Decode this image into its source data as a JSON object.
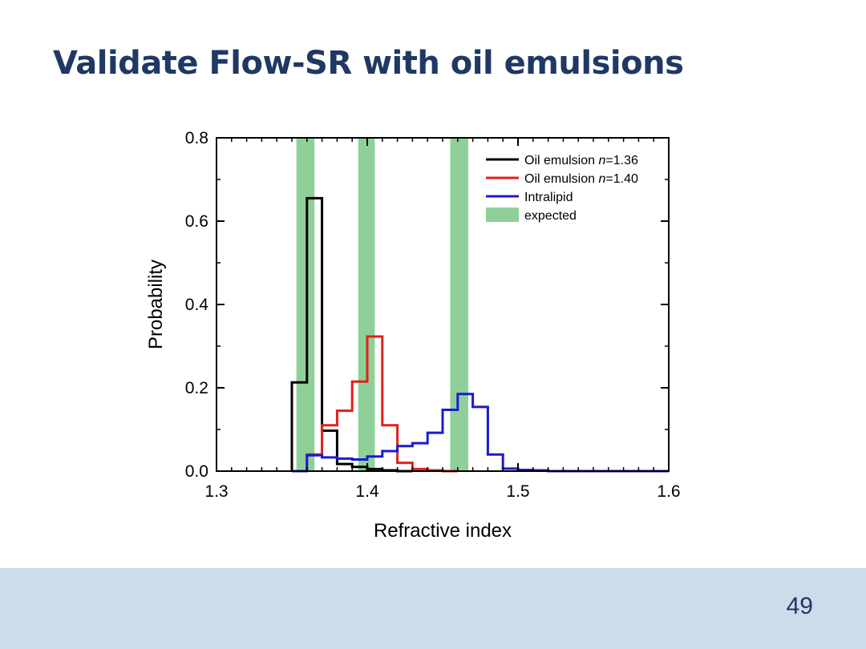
{
  "slide": {
    "title": "Validate Flow-SR with oil emulsions",
    "page_number": "49"
  },
  "colors": {
    "title": "#1f3864",
    "footer_band": "#cddceb",
    "expected_band": "#8fd099"
  },
  "chart_data": {
    "type": "line",
    "step": "histogram",
    "xlabel": "Refractive index",
    "ylabel": "Probability",
    "xlim": [
      1.3,
      1.6
    ],
    "ylim": [
      0.0,
      0.8
    ],
    "xticks": [
      "1.3",
      "1.4",
      "1.5",
      "1.6"
    ],
    "yticks": [
      "0.0",
      "0.2",
      "0.4",
      "0.6",
      "0.8"
    ],
    "bin_width": 0.01,
    "grid": false,
    "legend_position": "top-right",
    "legend": [
      {
        "label": "Oil emulsion n=1.36",
        "prefix": "Oil emulsion ",
        "italic": "n",
        "suffix": "=1.36",
        "color": "#000000",
        "kind": "line"
      },
      {
        "label": "Oil emulsion n=1.40",
        "prefix": "Oil emulsion ",
        "italic": "n",
        "suffix": "=1.40",
        "color": "#e0201b",
        "kind": "line"
      },
      {
        "label": "Intralipid",
        "prefix": "Intralipid",
        "italic": "",
        "suffix": "",
        "color": "#1a1ad2",
        "kind": "line"
      },
      {
        "label": "expected",
        "prefix": "expected",
        "italic": "",
        "suffix": "",
        "color": "#8fd099",
        "kind": "band"
      }
    ],
    "expected_bands": [
      [
        1.353,
        1.365
      ],
      [
        1.394,
        1.405
      ],
      [
        1.455,
        1.467
      ]
    ],
    "series": [
      {
        "name": "Oil emulsion n=1.36",
        "color": "#000000",
        "bin_edges": [
          1.35,
          1.36,
          1.37,
          1.38,
          1.39,
          1.4,
          1.41,
          1.42,
          1.43
        ],
        "values": [
          0.213,
          0.655,
          0.097,
          0.017,
          0.01,
          0.005,
          0.002,
          0.0
        ]
      },
      {
        "name": "Oil emulsion n=1.40",
        "color": "#e0201b",
        "bin_edges": [
          1.35,
          1.36,
          1.37,
          1.38,
          1.39,
          1.4,
          1.41,
          1.42,
          1.43,
          1.44,
          1.45,
          1.46
        ],
        "values": [
          0.0,
          0.04,
          0.11,
          0.145,
          0.215,
          0.323,
          0.11,
          0.02,
          0.005,
          0.002,
          0.0
        ]
      },
      {
        "name": "Intralipid",
        "color": "#1a1ad2",
        "bin_edges": [
          1.35,
          1.36,
          1.37,
          1.38,
          1.39,
          1.4,
          1.41,
          1.42,
          1.43,
          1.44,
          1.45,
          1.46,
          1.47,
          1.48,
          1.49,
          1.5,
          1.51,
          1.52,
          1.6
        ],
        "values": [
          0.0,
          0.038,
          0.033,
          0.03,
          0.028,
          0.035,
          0.048,
          0.06,
          0.067,
          0.092,
          0.147,
          0.185,
          0.154,
          0.04,
          0.006,
          0.003,
          0.002,
          0.0
        ]
      }
    ]
  }
}
